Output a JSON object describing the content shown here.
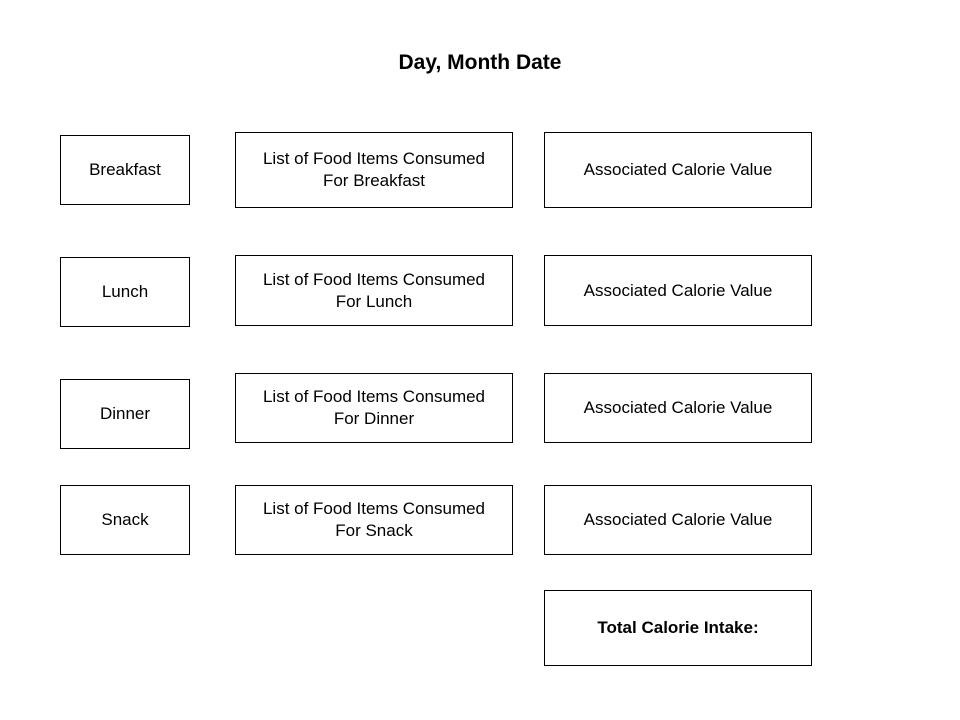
{
  "title": "Day, Month Date",
  "rows": [
    {
      "meal": "Breakfast",
      "foods_line1": "List of Food Items Consumed",
      "foods_line2": "For Breakfast",
      "calorie": "Associated Calorie Value"
    },
    {
      "meal": "Lunch",
      "foods_line1": "List of Food Items Consumed",
      "foods_line2": "For Lunch",
      "calorie": "Associated Calorie Value"
    },
    {
      "meal": "Dinner",
      "foods_line1": "List of Food Items Consumed",
      "foods_line2": "For Dinner",
      "calorie": "Associated Calorie Value"
    },
    {
      "meal": "Snack",
      "foods_line1": "List of Food Items Consumed",
      "foods_line2": "For Snack",
      "calorie": "Associated Calorie Value"
    }
  ],
  "total_label": "Total Calorie Intake:"
}
